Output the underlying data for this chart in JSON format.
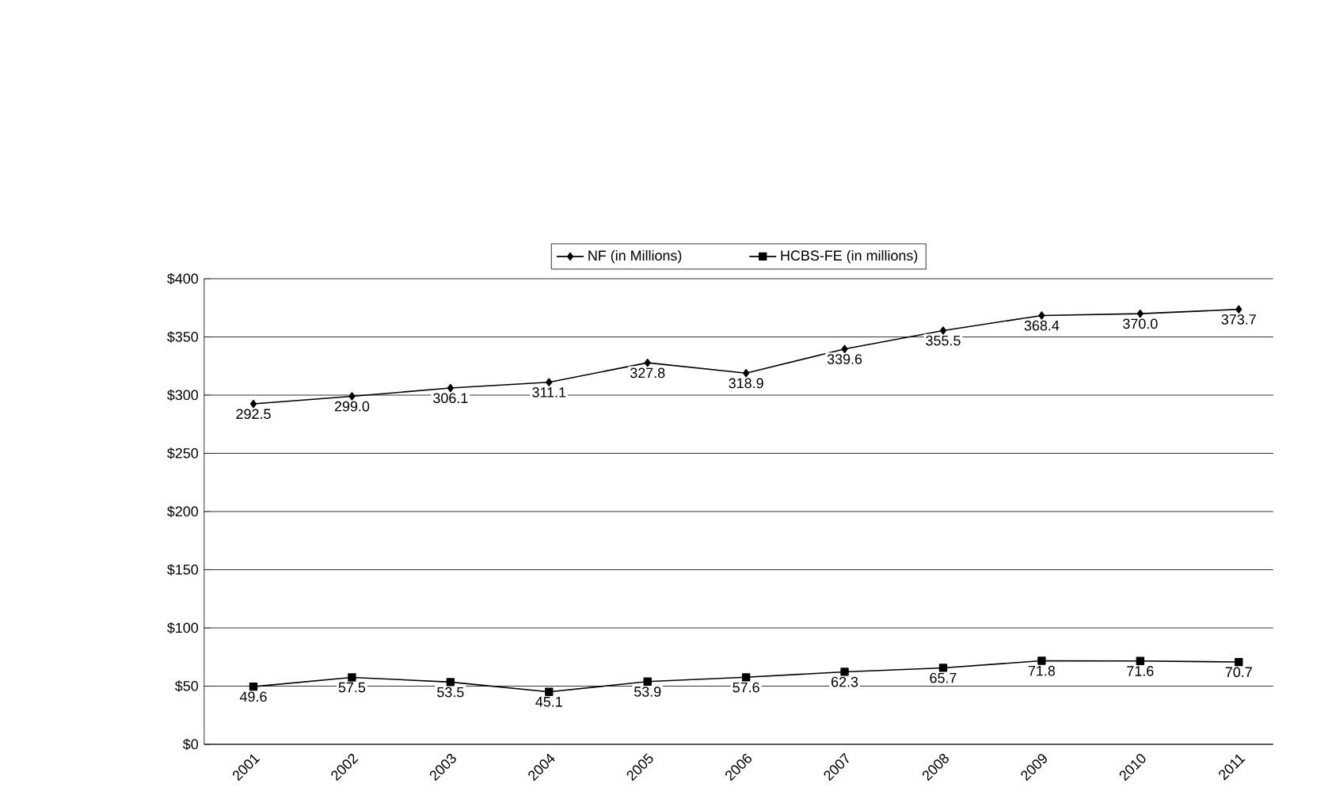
{
  "chart_data": {
    "type": "line",
    "categories": [
      "2001",
      "2002",
      "2003",
      "2004",
      "2005",
      "2006",
      "2007",
      "2008",
      "2009",
      "2010",
      "2011"
    ],
    "series": [
      {
        "name": "NF (in Millions)",
        "color": "#000000",
        "marker": "diamond",
        "values": [
          292.5,
          299.0,
          306.1,
          311.1,
          327.8,
          318.9,
          339.6,
          355.5,
          368.4,
          370.0,
          373.7
        ],
        "value_labels": [
          "292.5",
          "299.0",
          "306.1",
          "311.1",
          "327.8",
          "318.9",
          "339.6",
          "355.5",
          "368.4",
          "370.0",
          "373.7"
        ]
      },
      {
        "name": "HCBS-FE (in millions)",
        "color": "#000000",
        "marker": "square",
        "values": [
          49.6,
          57.5,
          53.5,
          45.1,
          53.9,
          57.6,
          62.3,
          65.7,
          71.8,
          71.6,
          70.7
        ],
        "value_labels": [
          "49.6",
          "57.5",
          "53.5",
          "45.1",
          "53.9",
          "57.6",
          "62.3",
          "65.7",
          "71.8",
          "71.6",
          "70.7"
        ]
      }
    ],
    "ylim": [
      0,
      400
    ],
    "yticks": [
      {
        "value": 0,
        "label": "$0"
      },
      {
        "value": 50,
        "label": "$50"
      },
      {
        "value": 100,
        "label": "$100"
      },
      {
        "value": 150,
        "label": "$150"
      },
      {
        "value": 200,
        "label": "$200"
      },
      {
        "value": 250,
        "label": "$250"
      },
      {
        "value": 300,
        "label": "$300"
      },
      {
        "value": 350,
        "label": "$350"
      },
      {
        "value": 400,
        "label": "$400"
      }
    ],
    "grid": "y",
    "legend": "top",
    "line_style": "solid"
  }
}
